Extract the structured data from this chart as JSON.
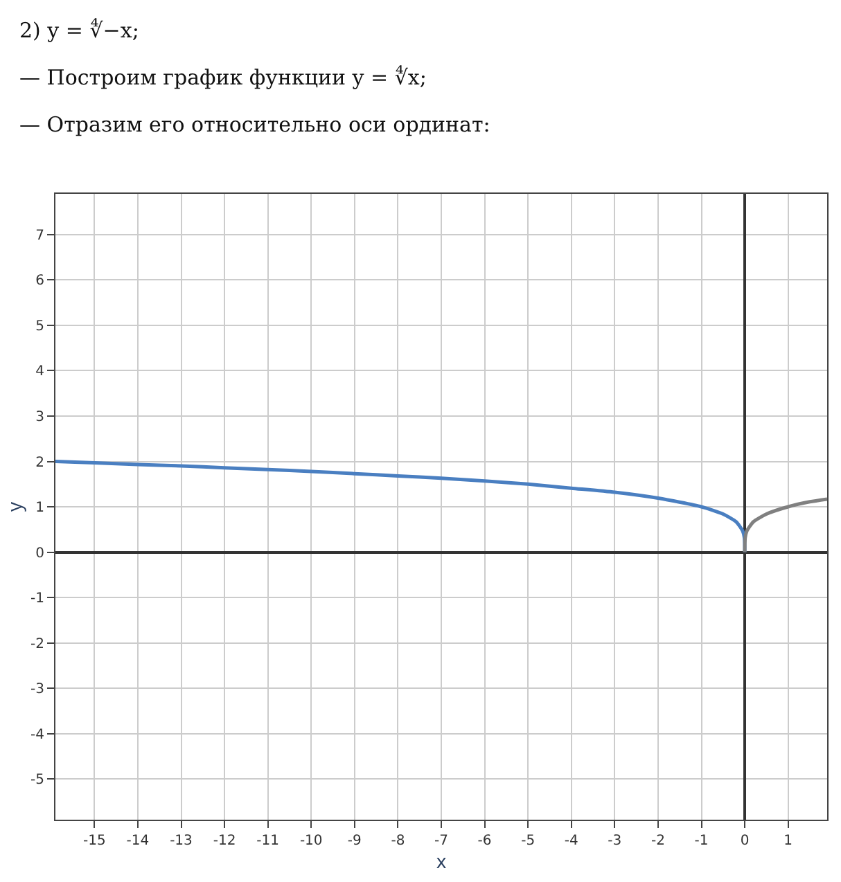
{
  "chart_data": {
    "type": "line",
    "annotations": [
      "2) y = ∜−x;",
      "— Построим график функции y = ∜x;",
      "— Отразим его относительно оси ординат:"
    ],
    "xlabel": "x",
    "ylabel": "y",
    "series": [
      {
        "color": "#4a7fc1",
        "x": [
          -15.9,
          -15,
          -14,
          -13,
          -12,
          -11,
          -10,
          -9,
          -8,
          -7,
          -6,
          -5,
          -4,
          -3,
          -2,
          -1,
          -0.5,
          -0.2,
          -0.05,
          -0.01,
          0
        ],
        "values": [
          2.0,
          1.97,
          1.93,
          1.9,
          1.86,
          1.82,
          1.78,
          1.73,
          1.68,
          1.63,
          1.57,
          1.5,
          1.41,
          1.32,
          1.19,
          1.0,
          0.84,
          0.67,
          0.47,
          0.32,
          0
        ]
      },
      {
        "color": "#808080",
        "x": [
          0,
          0.01,
          0.05,
          0.2,
          0.5,
          1,
          1.5,
          1.9
        ],
        "values": [
          0,
          0.32,
          0.47,
          0.67,
          0.84,
          1.0,
          1.11,
          1.17
        ]
      }
    ],
    "xlim": [
      -15.9,
      1.9
    ],
    "ylim": [
      -5.9,
      7.9
    ],
    "xticks": [
      -15,
      -14,
      -13,
      -12,
      -11,
      -10,
      -9,
      -8,
      -7,
      -6,
      -5,
      -4,
      -3,
      -2,
      -1,
      0,
      1
    ],
    "yticks": [
      -5,
      -4,
      -3,
      -2,
      -1,
      0,
      1,
      2,
      3,
      4,
      5,
      6,
      7
    ],
    "grid": true,
    "marker": "none",
    "line_style": "solid"
  }
}
